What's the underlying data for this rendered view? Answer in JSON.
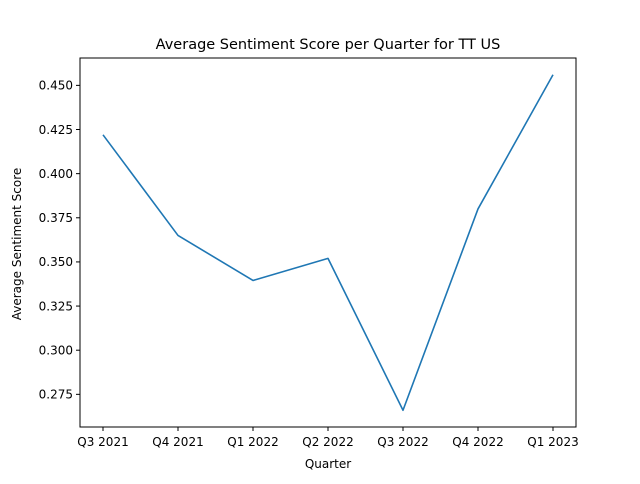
{
  "chart_data": {
    "type": "line",
    "title": "Average Sentiment Score per Quarter for TT US",
    "xlabel": "Quarter",
    "ylabel": "Average Sentiment Score",
    "categories": [
      "Q3 2021",
      "Q4 2021",
      "Q1 2022",
      "Q2 2022",
      "Q3 2022",
      "Q4 2022",
      "Q1 2023"
    ],
    "series": [
      {
        "values": [
          0.422,
          0.365,
          0.3395,
          0.352,
          0.266,
          0.38,
          0.456
        ]
      }
    ],
    "yticks": [
      "0.275",
      "0.300",
      "0.325",
      "0.350",
      "0.375",
      "0.400",
      "0.425",
      "0.450"
    ],
    "ylim": [
      0.2565,
      0.4655
    ],
    "grid": false,
    "colors": {
      "line": "#1f77b4",
      "axes": "#000000"
    }
  }
}
